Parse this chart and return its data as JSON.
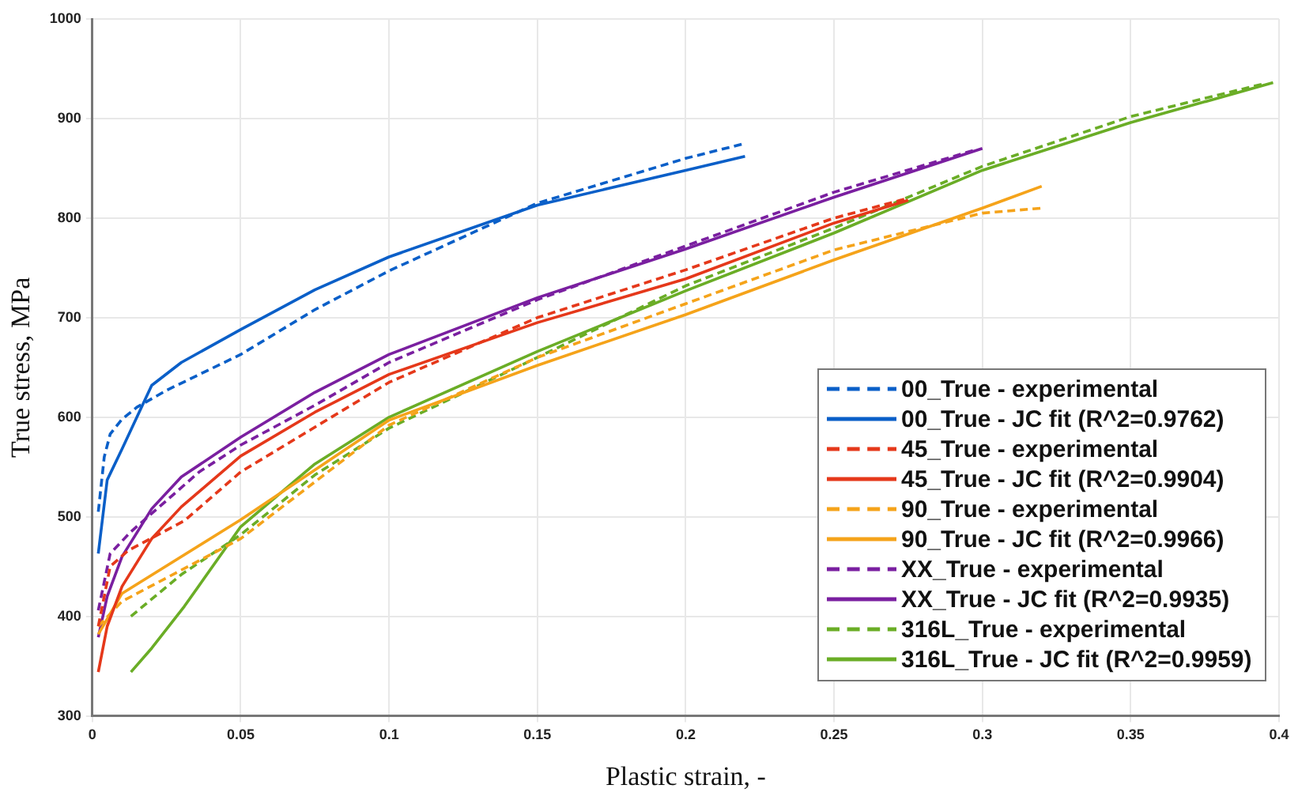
{
  "chart_data": {
    "type": "line",
    "xlabel": "Plastic strain, -",
    "ylabel": "True stress, MPa",
    "xlim": [
      0,
      0.4
    ],
    "ylim": [
      300,
      1000
    ],
    "xticks": [
      0,
      0.05,
      0.1,
      0.15,
      0.2,
      0.25,
      0.3,
      0.35,
      0.4
    ],
    "yticks": [
      300,
      400,
      500,
      600,
      700,
      800,
      900,
      1000
    ],
    "grid": true,
    "legend": "bottom right",
    "series": [
      {
        "name": "00_True - experimental",
        "color": "#0a5fc8",
        "line_style": "dashed",
        "x": [
          0.002,
          0.004,
          0.006,
          0.01,
          0.015,
          0.025,
          0.05,
          0.075,
          0.1,
          0.15,
          0.2,
          0.22
        ],
        "values": [
          505,
          560,
          583,
          598,
          610,
          627,
          663,
          708,
          747,
          815,
          860,
          875
        ]
      },
      {
        "name": "00_True - JC fit (R^2=0.9762)",
        "color": "#0a5fc8",
        "line_style": "solid",
        "x": [
          0.002,
          0.005,
          0.01,
          0.02,
          0.03,
          0.05,
          0.075,
          0.1,
          0.15,
          0.2,
          0.22
        ],
        "values": [
          463,
          537,
          568,
          632,
          655,
          688,
          728,
          761,
          813,
          848,
          862
        ]
      },
      {
        "name": "45_True - experimental",
        "color": "#e5381a",
        "line_style": "dashed",
        "x": [
          0.002,
          0.006,
          0.012,
          0.031,
          0.05,
          0.1,
          0.15,
          0.2,
          0.25,
          0.275
        ],
        "values": [
          390,
          450,
          466,
          496,
          545,
          635,
          700,
          748,
          800,
          820
        ]
      },
      {
        "name": "45_True - JC fit (R^2=0.9904)",
        "color": "#e5381a",
        "line_style": "solid",
        "x": [
          0.002,
          0.005,
          0.01,
          0.02,
          0.03,
          0.05,
          0.075,
          0.1,
          0.15,
          0.2,
          0.25,
          0.275
        ],
        "values": [
          344,
          390,
          430,
          478,
          510,
          561,
          605,
          643,
          695,
          739,
          795,
          818
        ]
      },
      {
        "name": "90_True - experimental",
        "color": "#f5a31a",
        "line_style": "dashed",
        "x": [
          0.002,
          0.01,
          0.05,
          0.1,
          0.15,
          0.2,
          0.25,
          0.3,
          0.32
        ],
        "values": [
          390,
          415,
          478,
          592,
          660,
          714,
          768,
          805,
          810
        ]
      },
      {
        "name": "90_True - JC fit (R^2=0.9966)",
        "color": "#f5a31a",
        "line_style": "solid",
        "x": [
          0.002,
          0.01,
          0.05,
          0.1,
          0.15,
          0.2,
          0.25,
          0.3,
          0.32
        ],
        "values": [
          382,
          423,
          497,
          597,
          652,
          703,
          758,
          810,
          832
        ]
      },
      {
        "name": "XX_True - experimental",
        "color": "#7a1fa0",
        "line_style": "dashed",
        "x": [
          0.002,
          0.006,
          0.013,
          0.036,
          0.05,
          0.075,
          0.1,
          0.15,
          0.2,
          0.25,
          0.297
        ],
        "values": [
          406,
          463,
          485,
          545,
          572,
          612,
          655,
          718,
          772,
          826,
          868
        ]
      },
      {
        "name": "XX_True - JC fit (R^2=0.9935)",
        "color": "#7a1fa0",
        "line_style": "solid",
        "x": [
          0.002,
          0.005,
          0.01,
          0.02,
          0.03,
          0.05,
          0.075,
          0.1,
          0.15,
          0.2,
          0.25,
          0.3
        ],
        "values": [
          379,
          420,
          460,
          508,
          540,
          580,
          625,
          663,
          720,
          769,
          821,
          870
        ]
      },
      {
        "name": "316L_True - experimental",
        "color": "#6aad26",
        "line_style": "dashed",
        "x": [
          0.013,
          0.03,
          0.05,
          0.075,
          0.1,
          0.15,
          0.2,
          0.25,
          0.3,
          0.35,
          0.395
        ],
        "values": [
          400,
          442,
          482,
          542,
          589,
          660,
          732,
          790,
          852,
          902,
          935
        ]
      },
      {
        "name": "316L_True - JC fit (R^2=0.9959)",
        "color": "#6aad26",
        "line_style": "solid",
        "x": [
          0.013,
          0.02,
          0.031,
          0.05,
          0.075,
          0.1,
          0.15,
          0.2,
          0.25,
          0.3,
          0.35,
          0.398
        ],
        "values": [
          344,
          368,
          410,
          490,
          553,
          600,
          666,
          727,
          785,
          848,
          896,
          936
        ]
      }
    ]
  }
}
